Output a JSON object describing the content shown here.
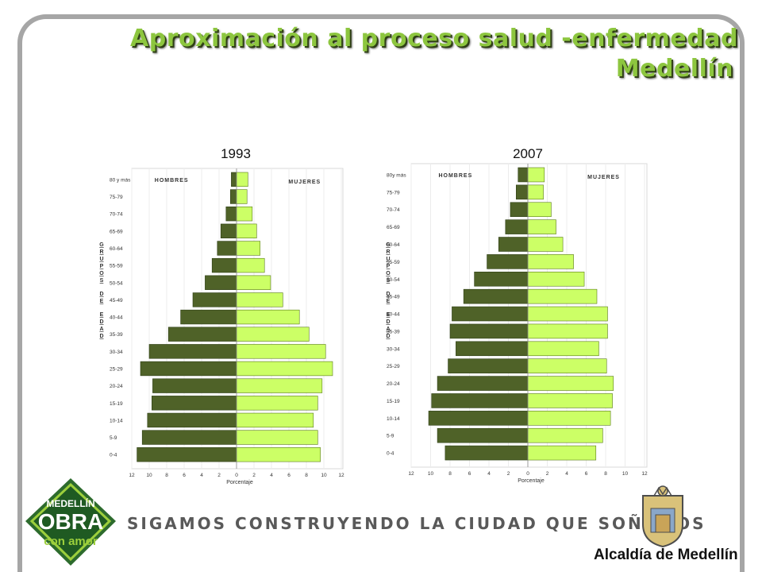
{
  "slide": {
    "title_line1": "Aproximación al proceso salud -enfermedad",
    "title_line2": "Medellín",
    "slogan": "SIGAMOS CONSTRUYENDO LA CIUDAD QUE SOÑAMOS",
    "logo_left": {
      "line1": "MEDELLÍN",
      "line2": "OBRA",
      "line3": "con amor"
    },
    "logo_right": "Alcaldía de Medellín",
    "colors": {
      "accent": "#8dc63f",
      "hombres": "#4f6228",
      "mujeres": "#ccff66",
      "frame": "#a6a6a6"
    }
  },
  "chart_data": [
    {
      "type": "bar",
      "title": "1993",
      "orientation": "horizontal-pyramid",
      "categories": [
        "80 y más",
        "75-79",
        "70-74",
        "65-69",
        "60-64",
        "55-59",
        "50-54",
        "45-49",
        "40-44",
        "35-39",
        "30-34",
        "25-29",
        "20-24",
        "15-19",
        "10-14",
        "5-9",
        "0-4"
      ],
      "series": [
        {
          "name": "HOMBRES",
          "values": [
            0.6,
            0.7,
            1.2,
            1.8,
            2.2,
            2.8,
            3.6,
            5.0,
            6.4,
            7.8,
            10.0,
            11.0,
            9.6,
            9.7,
            10.2,
            10.8,
            11.4
          ]
        },
        {
          "name": "MUJERES",
          "values": [
            1.3,
            1.2,
            1.8,
            2.3,
            2.7,
            3.2,
            3.9,
            5.3,
            7.2,
            8.3,
            10.2,
            11.0,
            9.8,
            9.3,
            8.8,
            9.3,
            9.6
          ]
        }
      ],
      "xlabel": "Porcentaje",
      "ylabel": "GRUPOS DE EDAD",
      "xlim": [
        -12,
        12
      ],
      "xticks_left": [
        "12",
        "10",
        "8",
        "6",
        "4",
        "2"
      ],
      "xticks_right": [
        "0",
        "2",
        "4",
        "6",
        "8",
        "10",
        "12"
      ]
    },
    {
      "type": "bar",
      "title": "2007",
      "orientation": "horizontal-pyramid",
      "categories": [
        "80y más",
        "75-79",
        "70-74",
        "65-69",
        "60-64",
        "55-59",
        "50-54",
        "45-49",
        "40-44",
        "35-39",
        "30-34",
        "25-29",
        "20-24",
        "15-19",
        "10-14",
        "5-9",
        "0-4"
      ],
      "series": [
        {
          "name": "HOMBRES",
          "values": [
            1.0,
            1.2,
            1.8,
            2.3,
            3.0,
            4.2,
            5.5,
            6.6,
            7.8,
            8.0,
            7.4,
            8.2,
            9.3,
            9.9,
            10.2,
            9.3,
            8.5
          ]
        },
        {
          "name": "MUJERES",
          "values": [
            1.7,
            1.6,
            2.4,
            2.9,
            3.6,
            4.7,
            5.8,
            7.1,
            8.2,
            8.2,
            7.3,
            8.1,
            8.8,
            8.7,
            8.5,
            7.7,
            7.0
          ]
        }
      ],
      "xlabel": "Porcentaje",
      "ylabel": "GRUPOS DE EDAD",
      "xlim": [
        -12,
        12
      ],
      "xticks_left": [
        "12",
        "10",
        "8",
        "6",
        "4",
        "2"
      ],
      "xticks_right": [
        "0",
        "2",
        "4",
        "6",
        "8",
        "10",
        "12"
      ]
    }
  ]
}
